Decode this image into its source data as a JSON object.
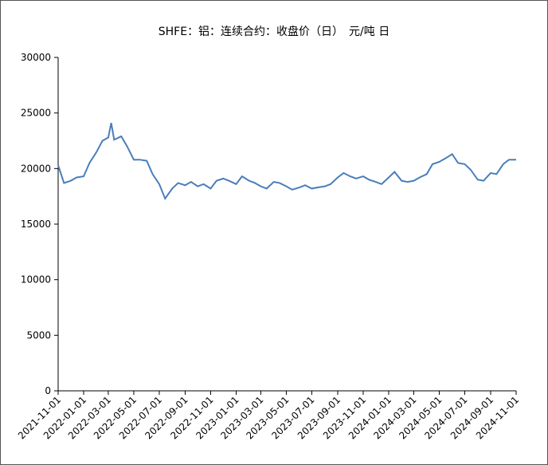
{
  "chart_data": {
    "type": "line",
    "title": "SHFE：铝：连续合约：收盘价（日）　元/吨 日",
    "x": [
      "2021-11-01",
      "2021-11-15",
      "2021-12-01",
      "2021-12-15",
      "2022-01-01",
      "2022-01-15",
      "2022-02-01",
      "2022-02-15",
      "2022-03-01",
      "2022-03-08",
      "2022-03-15",
      "2022-04-01",
      "2022-04-15",
      "2022-05-01",
      "2022-05-15",
      "2022-06-01",
      "2022-06-15",
      "2022-07-01",
      "2022-07-15",
      "2022-08-01",
      "2022-08-15",
      "2022-09-01",
      "2022-09-15",
      "2022-10-01",
      "2022-10-15",
      "2022-11-01",
      "2022-11-15",
      "2022-12-01",
      "2022-12-15",
      "2023-01-01",
      "2023-01-15",
      "2023-02-01",
      "2023-02-15",
      "2023-03-01",
      "2023-03-15",
      "2023-04-01",
      "2023-04-15",
      "2023-05-01",
      "2023-05-15",
      "2023-06-01",
      "2023-06-15",
      "2023-07-01",
      "2023-07-15",
      "2023-08-01",
      "2023-08-15",
      "2023-09-01",
      "2023-09-15",
      "2023-10-01",
      "2023-10-15",
      "2023-11-01",
      "2023-11-15",
      "2023-12-01",
      "2023-12-15",
      "2024-01-01",
      "2024-01-15",
      "2024-02-01",
      "2024-02-15",
      "2024-03-01",
      "2024-03-15",
      "2024-04-01",
      "2024-04-15",
      "2024-05-01",
      "2024-05-15",
      "2024-06-01",
      "2024-06-15",
      "2024-07-01",
      "2024-07-15",
      "2024-08-01",
      "2024-08-15",
      "2024-09-01",
      "2024-09-15",
      "2024-10-01",
      "2024-10-15",
      "2024-11-01"
    ],
    "series": [
      {
        "name": "收盘价",
        "color": "#4a7ebb",
        "values": [
          20300,
          18700,
          18900,
          19200,
          19300,
          20500,
          21500,
          22500,
          22800,
          24100,
          22600,
          22900,
          22000,
          20800,
          20800,
          20700,
          19500,
          18600,
          17300,
          18200,
          18700,
          18500,
          18800,
          18400,
          18600,
          18200,
          18900,
          19100,
          18900,
          18600,
          19300,
          18900,
          18700,
          18400,
          18200,
          18800,
          18700,
          18400,
          18100,
          18300,
          18500,
          18200,
          18300,
          18400,
          18600,
          19200,
          19600,
          19300,
          19100,
          19300,
          19000,
          18800,
          18600,
          19200,
          19700,
          18900,
          18800,
          18900,
          19200,
          19500,
          20400,
          20600,
          20900,
          21300,
          20500,
          20400,
          19900,
          19000,
          18900,
          19600,
          19500,
          20400,
          20800,
          20800
        ]
      }
    ],
    "xlim": [
      "2021-11-01",
      "2024-11-01"
    ],
    "xticks": [
      "2021-11-01",
      "2022-01-01",
      "2022-03-01",
      "2022-05-01",
      "2022-07-01",
      "2022-09-01",
      "2022-11-01",
      "2023-01-01",
      "2023-03-01",
      "2023-05-01",
      "2023-07-01",
      "2023-09-01",
      "2023-11-01",
      "2024-01-01",
      "2024-03-01",
      "2024-05-01",
      "2024-07-01",
      "2024-09-01",
      "2024-11-01"
    ],
    "ylim": [
      0,
      30000
    ],
    "yticks": [
      0,
      5000,
      10000,
      15000,
      20000,
      25000,
      30000
    ]
  }
}
